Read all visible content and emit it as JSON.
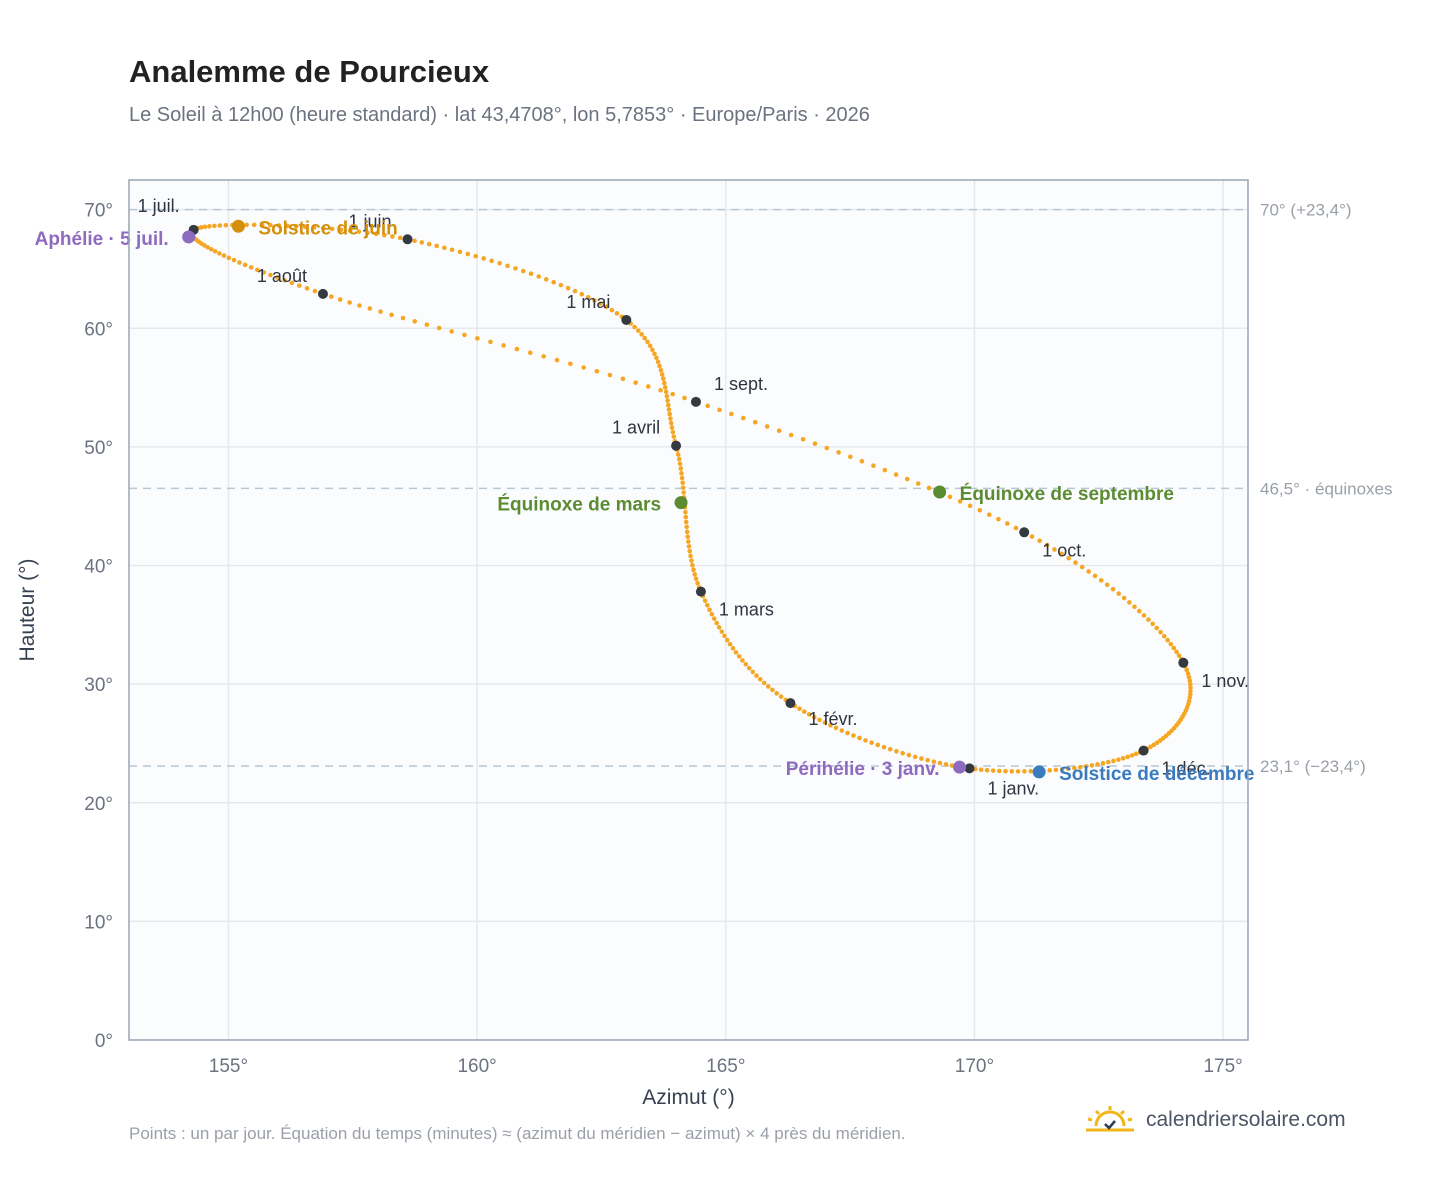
{
  "header": {
    "title": "Analemme de Pourcieux",
    "subtitle": "Le Soleil à 12h00 (heure standard) · lat 43,4708°, lon 5,7853° · Europe/Paris · 2026"
  },
  "footer": {
    "note": "Points : un par jour. Équation du temps (minutes) ≈ (azimut du méridien − azimut) × 4 près du méridien.",
    "brand": "calendriersolaire.com",
    "brand_icon": "sun-horizon-icon"
  },
  "colors": {
    "curve": "#f5a623",
    "month_marker": "#343a40",
    "equinox": "#5b8c32",
    "solstice_june": "#d4900a",
    "solstice_december": "#3a7abf",
    "apsis": "#8e6bbf",
    "reference_line": "#b8c7d3",
    "plot_bg": "#fbfcfe",
    "grid": "#e5e9ef"
  },
  "chart_data": {
    "type": "scatter",
    "xlabel": "Azimut (°)",
    "ylabel": "Hauteur (°)",
    "xlim": [
      153,
      175.5
    ],
    "ylim": [
      0,
      72.5
    ],
    "xticks": [
      155,
      160,
      165,
      170,
      175
    ],
    "yticks": [
      0,
      10,
      20,
      30,
      40,
      50,
      60,
      70
    ],
    "x_tick_labels": [
      "155°",
      "160°",
      "165°",
      "170°",
      "175°"
    ],
    "y_tick_labels": [
      "0°",
      "10°",
      "20°",
      "30°",
      "40°",
      "50°",
      "60°",
      "70°"
    ],
    "grid": true,
    "series_description_points_per_year": 365,
    "reference_lines": [
      {
        "y": 70,
        "label": "70° (+23,4°)"
      },
      {
        "y": 46.5,
        "label": "46,5° · équinoxes"
      },
      {
        "y": 23.1,
        "label": "23,1° (−23,4°)"
      }
    ],
    "monthly_points": [
      {
        "label": "1 janv.",
        "x": 169.9,
        "y": 22.9,
        "day": 1
      },
      {
        "label": "1 févr.",
        "x": 166.3,
        "y": 28.4,
        "day": 32
      },
      {
        "label": "1 mars",
        "x": 164.5,
        "y": 37.8,
        "day": 60
      },
      {
        "label": "1 avril",
        "x": 164.0,
        "y": 50.1,
        "day": 91
      },
      {
        "label": "1 mai",
        "x": 163.0,
        "y": 60.7,
        "day": 121
      },
      {
        "label": "1 juin",
        "x": 158.6,
        "y": 67.5,
        "day": 152
      },
      {
        "label": "1 juil.",
        "x": 154.3,
        "y": 68.3,
        "day": 182
      },
      {
        "label": "1 août",
        "x": 156.9,
        "y": 62.9,
        "day": 213
      },
      {
        "label": "1 sept.",
        "x": 164.4,
        "y": 53.8,
        "day": 244
      },
      {
        "label": "1 oct.",
        "x": 171.0,
        "y": 42.8,
        "day": 274
      },
      {
        "label": "1 nov.",
        "x": 174.2,
        "y": 31.8,
        "day": 305
      },
      {
        "label": "1 déc.",
        "x": 173.4,
        "y": 24.4,
        "day": 335
      }
    ],
    "special_points": [
      {
        "label": "Solstice de juin",
        "x": 155.2,
        "y": 68.6,
        "color_key": "solstice_june",
        "day": 172
      },
      {
        "label": "Solstice de décembre",
        "x": 171.3,
        "y": 22.6,
        "color_key": "solstice_december",
        "day": 355
      },
      {
        "label": "Équinoxe de mars",
        "x": 164.1,
        "y": 45.3,
        "color_key": "equinox",
        "day": 79
      },
      {
        "label": "Équinoxe de septembre",
        "x": 169.3,
        "y": 46.2,
        "color_key": "equinox",
        "day": 266
      },
      {
        "label": "Aphélie · 5 juil.",
        "x": 154.2,
        "y": 67.7,
        "color_key": "apsis",
        "day": 186
      },
      {
        "label": "Périhélie · 3 janv.",
        "x": 169.7,
        "y": 23.0,
        "color_key": "apsis",
        "day": 3
      }
    ]
  }
}
